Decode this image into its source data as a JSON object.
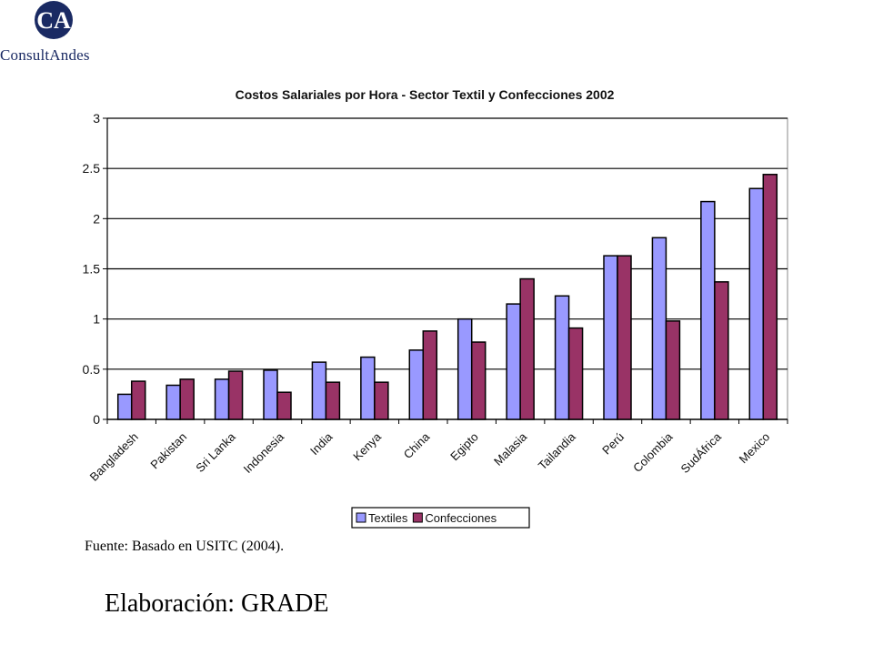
{
  "brand": {
    "logo_letters": "CA",
    "name": "ConsultAndes",
    "colors": {
      "navy": "#1a2a63",
      "white": "#ffffff"
    }
  },
  "chart_data": {
    "type": "bar",
    "title": "Costos Salariales por Hora - Sector Textil y Confecciones 2002",
    "xlabel": "",
    "ylabel": "",
    "ylim": [
      0,
      3
    ],
    "yticks": [
      "0",
      "0.5",
      "1",
      "1.5",
      "2",
      "2.5",
      "3"
    ],
    "grid": true,
    "legend_position": "bottom-center",
    "categories": [
      "Bangladesh",
      "Pakistan",
      "Sri Lanka",
      "Indonesia",
      "India",
      "Kenya",
      "China",
      "Egipto",
      "Malasia",
      "Tailandia",
      "Perú",
      "Colombia",
      "SudÁfrica",
      "Mexico"
    ],
    "series": [
      {
        "name": "Textiles",
        "color": "#9999ff",
        "values": [
          0.25,
          0.34,
          0.4,
          0.49,
          0.57,
          0.62,
          0.69,
          1.0,
          1.15,
          1.23,
          1.63,
          1.81,
          2.17,
          2.3
        ]
      },
      {
        "name": "Confecciones",
        "color": "#993366",
        "values": [
          0.38,
          0.4,
          0.48,
          0.27,
          0.37,
          0.37,
          0.88,
          0.77,
          1.4,
          0.91,
          1.63,
          0.98,
          1.37,
          2.44
        ]
      }
    ]
  },
  "source_note": "Fuente: Basado en USITC (2004).",
  "credit": "Elaboración: GRADE"
}
